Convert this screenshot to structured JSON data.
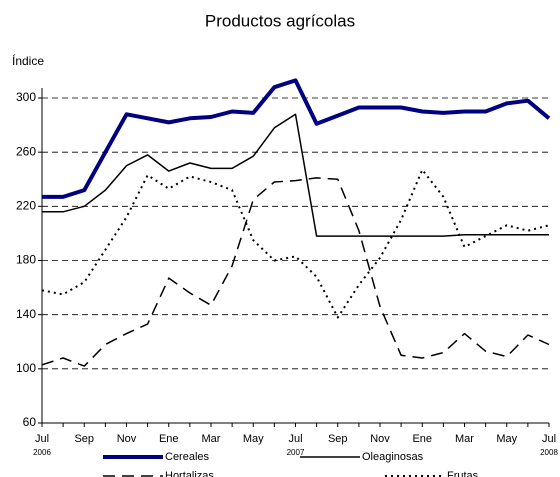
{
  "chart_data": {
    "type": "line",
    "title": "Productos agrícolas",
    "y_label": "Índice",
    "categories": [
      "Jul",
      null,
      "Sep",
      null,
      "Nov",
      null,
      "Ene",
      null,
      "Mar",
      null,
      "May",
      null,
      "Jul",
      null,
      "Sep",
      null,
      "Nov",
      null,
      "Ene",
      null,
      "Mar",
      null,
      "May",
      null,
      "Jul"
    ],
    "category_years": [
      "2006",
      null,
      null,
      null,
      null,
      null,
      null,
      null,
      null,
      null,
      null,
      null,
      "2007",
      null,
      null,
      null,
      null,
      null,
      null,
      null,
      null,
      null,
      null,
      null,
      "2008"
    ],
    "ylim": [
      60,
      300
    ],
    "yticks": [
      60,
      100,
      140,
      180,
      220,
      260,
      300
    ],
    "grid": true,
    "series": [
      {
        "name": "Cereales",
        "color": "#000080",
        "style": "thick",
        "values": [
          227,
          227,
          232,
          260,
          288,
          285,
          282,
          285,
          286,
          290,
          289,
          308,
          313,
          281,
          287,
          293,
          293,
          293,
          290,
          289,
          290,
          290,
          296,
          298,
          285
        ]
      },
      {
        "name": "Oleaginosas",
        "color": "#000000",
        "style": "solid",
        "values": [
          216,
          216,
          220,
          232,
          250,
          258,
          246,
          252,
          248,
          248,
          257,
          278,
          288,
          198,
          198,
          198,
          198,
          198,
          198,
          198,
          199,
          199,
          199,
          199,
          199
        ]
      },
      {
        "name": "Hortalizas",
        "color": "#000000",
        "style": "dashed",
        "values": [
          103,
          108,
          102,
          118,
          126,
          133,
          167,
          156,
          147,
          176,
          225,
          238,
          239,
          241,
          240,
          202,
          146,
          110,
          108,
          112,
          126,
          113,
          109,
          125,
          118
        ]
      },
      {
        "name": "Frutas",
        "color": "#000000",
        "style": "dotted",
        "values": [
          158,
          155,
          164,
          188,
          212,
          243,
          233,
          242,
          238,
          232,
          195,
          180,
          183,
          168,
          138,
          162,
          182,
          210,
          247,
          227,
          190,
          198,
          206,
          202,
          206
        ]
      }
    ]
  }
}
